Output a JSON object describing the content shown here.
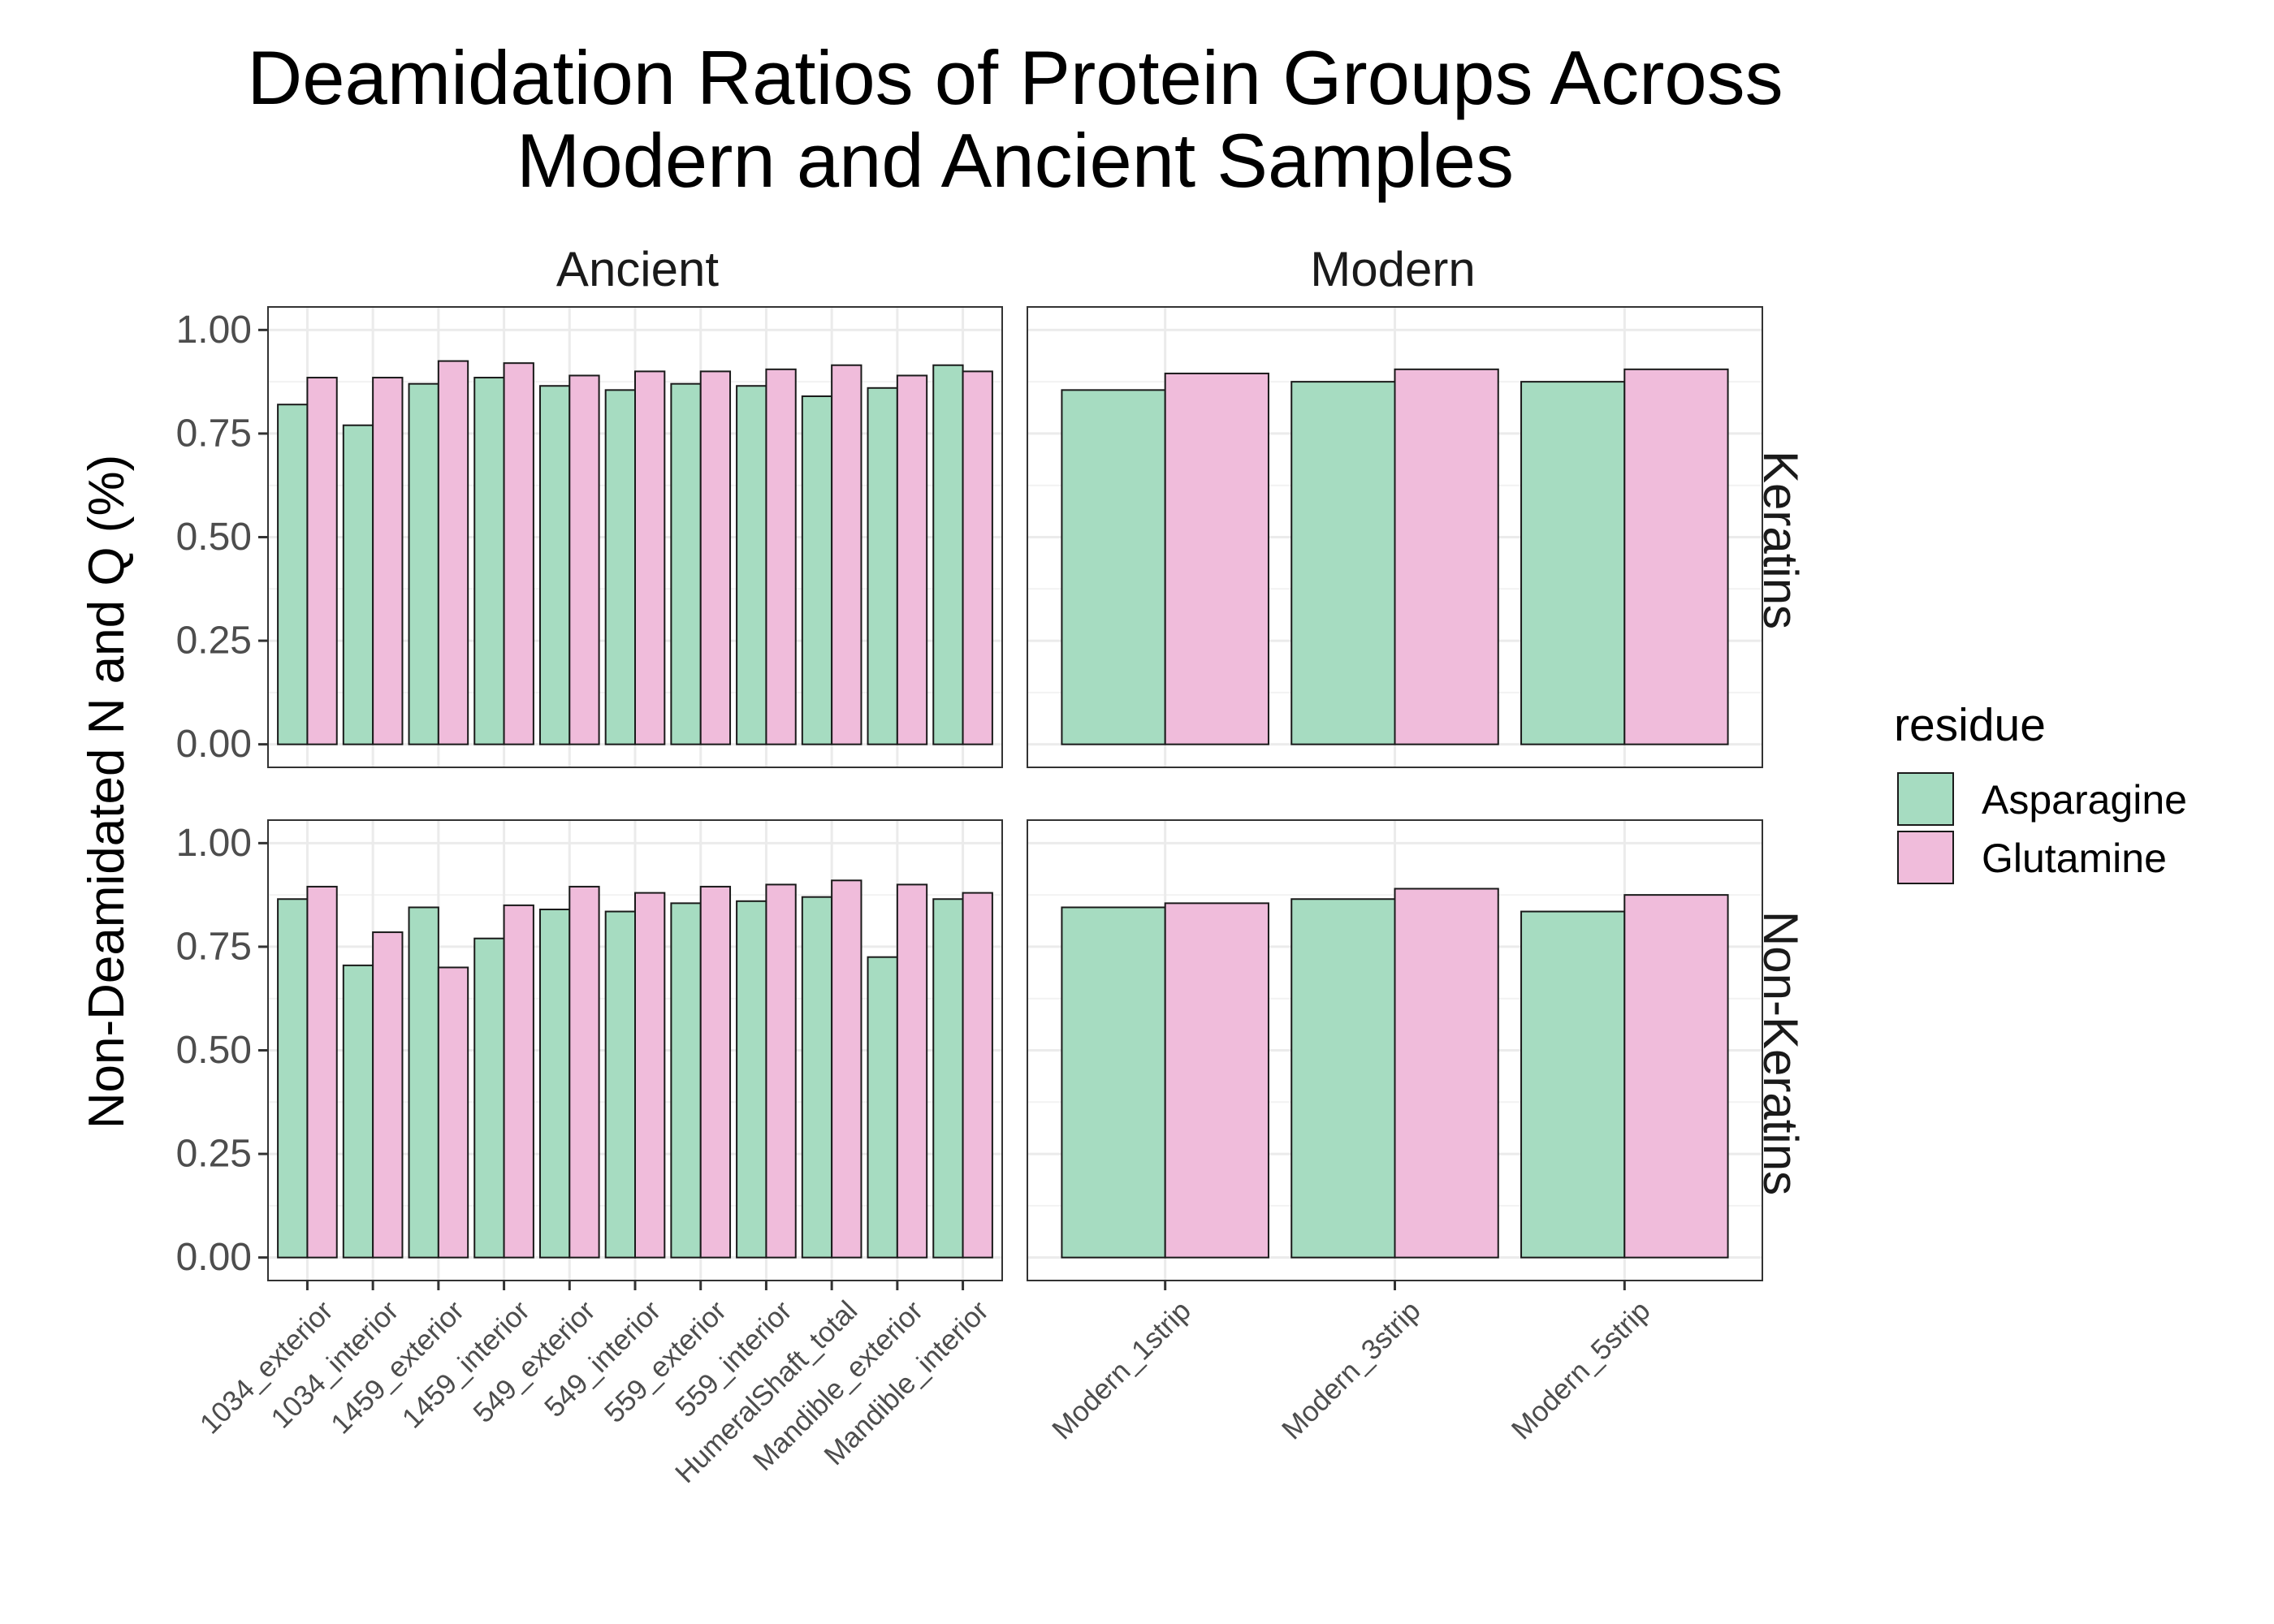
{
  "chart_data": {
    "type": "bar",
    "title": [
      "Deamidation Ratios of Protein Groups Across",
      "Modern and Ancient Samples"
    ],
    "ylabel": "Non-Deamidated N and Q (%)",
    "xlabel": "",
    "ylim": [
      0,
      1
    ],
    "yticks": [
      "0.00",
      "0.25",
      "0.50",
      "0.75",
      "1.00"
    ],
    "ytick_values": [
      0,
      0.25,
      0.5,
      0.75,
      1.0
    ],
    "grid": true,
    "legend": {
      "title": "residue",
      "position": "right",
      "entries": [
        "Asparagine",
        "Glutamine"
      ],
      "colors": [
        "#a6dcc1",
        "#f0bcdb"
      ]
    },
    "bar_border_color": "#1a1a1a",
    "facet_columns": [
      "Ancient",
      "Modern"
    ],
    "facet_rows": [
      "Keratins",
      "Non-Keratins"
    ],
    "categories": {
      "Ancient": [
        "1034_exterior",
        "1034_interior",
        "1459_exterior",
        "1459_interior",
        "549_exterior",
        "549_interior",
        "559_exterior",
        "559_interior",
        "HumeralShaft_total",
        "Mandible_exterior",
        "Mandible_interior"
      ],
      "Modern": [
        "Modern_1strip",
        "Modern_3strip",
        "Modern_5strip"
      ]
    },
    "panels": [
      {
        "column": "Ancient",
        "row": "Keratins",
        "series": [
          {
            "name": "Asparagine",
            "values": [
              0.82,
              0.77,
              0.87,
              0.885,
              0.865,
              0.855,
              0.87,
              0.865,
              0.84,
              0.86,
              0.915
            ]
          },
          {
            "name": "Glutamine",
            "values": [
              0.885,
              0.885,
              0.925,
              0.92,
              0.89,
              0.9,
              0.9,
              0.905,
              0.915,
              0.89,
              0.9
            ]
          }
        ]
      },
      {
        "column": "Modern",
        "row": "Keratins",
        "series": [
          {
            "name": "Asparagine",
            "values": [
              0.855,
              0.875,
              0.875
            ]
          },
          {
            "name": "Glutamine",
            "values": [
              0.895,
              0.905,
              0.905
            ]
          }
        ]
      },
      {
        "column": "Ancient",
        "row": "Non-Keratins",
        "series": [
          {
            "name": "Asparagine",
            "values": [
              0.865,
              0.705,
              0.845,
              0.77,
              0.84,
              0.835,
              0.855,
              0.86,
              0.87,
              0.725,
              0.865
            ]
          },
          {
            "name": "Glutamine",
            "values": [
              0.895,
              0.785,
              0.7,
              0.85,
              0.895,
              0.88,
              0.895,
              0.9,
              0.91,
              0.9,
              0.88
            ]
          }
        ]
      },
      {
        "column": "Modern",
        "row": "Non-Keratins",
        "series": [
          {
            "name": "Asparagine",
            "values": [
              0.845,
              0.865,
              0.835
            ]
          },
          {
            "name": "Glutamine",
            "values": [
              0.855,
              0.89,
              0.875
            ]
          }
        ]
      }
    ]
  }
}
